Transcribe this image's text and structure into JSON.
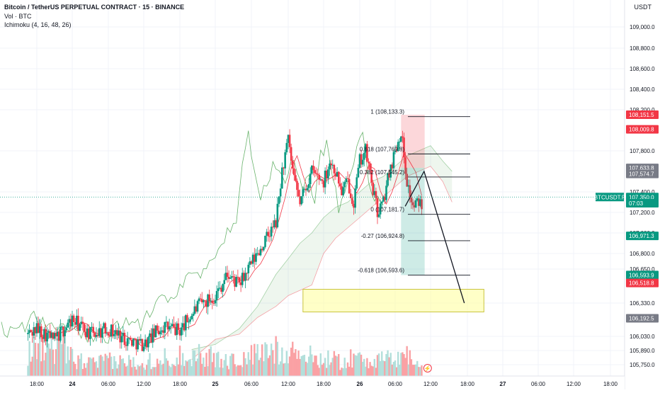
{
  "header": {
    "title": "Bitcoin / TetherUS PERPETUAL CONTRACT · 15 · BINANCE",
    "vol": "Vol · BTC",
    "ichimoku": "Ichimoku (4, 16, 48, 26)",
    "currency": "USDT"
  },
  "colors": {
    "up": "#089981",
    "down": "#f23645",
    "vol_up": "#b2dfdb",
    "vol_down": "#faa1a4",
    "cloud": "#43a047",
    "fib_line": "#131722",
    "target_zone": "#ffff99",
    "axis_text": "#131722"
  },
  "chart_data": {
    "type": "candlestick",
    "symbol": "BTCUSDT.P",
    "y_axis": {
      "ticks": [
        "109,000.0",
        "108,800.0",
        "108,600.0",
        "108,400.0",
        "108,200.0",
        "107,800.0",
        "107,400.0",
        "107,200.0",
        "107,000.0",
        "106,800.0",
        "106,650.0",
        "106,330.0",
        "106,030.0",
        "105,890.0",
        "105,750.0"
      ],
      "tick_values": [
        109000,
        108800,
        108600,
        108400,
        108200,
        107800,
        107400,
        107200,
        107000,
        106800,
        106650,
        106330,
        106030,
        105890,
        105750
      ]
    },
    "x_axis": {
      "ticks": [
        "18:00",
        "24",
        "06:00",
        "12:00",
        "18:00",
        "25",
        "06:00",
        "12:00",
        "18:00",
        "26",
        "06:00",
        "12:00",
        "18:00",
        "27",
        "06:00",
        "12:00",
        "18:00"
      ],
      "tick_hours": [
        -6,
        0,
        6,
        12,
        18,
        24,
        30,
        36,
        42,
        48,
        54,
        60,
        66,
        72,
        78,
        84,
        90
      ]
    },
    "price_labels": [
      {
        "text": "108,151.5",
        "value": 108151.5,
        "kind": "down"
      },
      {
        "text": "108,009.8",
        "value": 108009.8,
        "kind": "down"
      },
      {
        "text": "107,633.8",
        "value": 107633.8,
        "kind": "gray"
      },
      {
        "text": "107,574.7",
        "value": 107574.7,
        "kind": "gray"
      },
      {
        "text": "107,350.0",
        "value": 107350.0,
        "kind": "up"
      },
      {
        "text": "07:03",
        "value": 107290.0,
        "kind": "up"
      },
      {
        "text": "106,971.3",
        "value": 106971.3,
        "kind": "up"
      },
      {
        "text": "106,593.9",
        "value": 106593.9,
        "kind": "up"
      },
      {
        "text": "106,518.8",
        "value": 106518.8,
        "kind": "down"
      },
      {
        "text": "106,192.5",
        "value": 106192.5,
        "kind": "gray"
      }
    ],
    "symbol_label": "BTCUSDT.P",
    "last_price": 107350.0,
    "fib_levels": [
      {
        "label": "1 (108,133.3)",
        "value": 108133.3
      },
      {
        "label": "0.618 (107,769.8)",
        "value": 107769.8
      },
      {
        "label": "0.382 (107,545.2)",
        "value": 107545.2
      },
      {
        "label": "0 (107,181.7)",
        "value": 107181.7
      },
      {
        "label": "-0.27 (106,924.8)",
        "value": 106924.8
      },
      {
        "label": "-0.618 (106,593.6)",
        "value": 106593.6
      }
    ],
    "position": {
      "entry": 107633.8,
      "stop": 108151.5,
      "target": 106593.6,
      "start_hour": 55,
      "end_hour": 59
    },
    "projection": [
      [
        55.7,
        107260
      ],
      [
        58.9,
        107600
      ],
      [
        65.5,
        106330
      ]
    ],
    "target_zone": {
      "low": 106250,
      "high": 106460,
      "start_hour": 38.5,
      "end_hour": 68.8
    },
    "candle_anchors": [
      [
        -7.5,
        106050
      ],
      [
        -6,
        106100
      ],
      [
        -3,
        106000
      ],
      [
        0,
        106180
      ],
      [
        3,
        106050
      ],
      [
        6,
        106100
      ],
      [
        9,
        106000
      ],
      [
        12,
        105950
      ],
      [
        15,
        106120
      ],
      [
        18,
        106080
      ],
      [
        21,
        106300
      ],
      [
        24,
        106400
      ],
      [
        26,
        106600
      ],
      [
        28,
        106500
      ],
      [
        30,
        106700
      ],
      [
        32,
        106900
      ],
      [
        34,
        107100
      ],
      [
        35,
        107600
      ],
      [
        36,
        107900
      ],
      [
        37,
        107500
      ],
      [
        38,
        107300
      ],
      [
        40,
        107600
      ],
      [
        42,
        107500
      ],
      [
        43,
        107700
      ],
      [
        44,
        107600
      ],
      [
        45,
        107400
      ],
      [
        46,
        107500
      ],
      [
        47,
        107300
      ],
      [
        48,
        107700
      ],
      [
        49,
        107800
      ],
      [
        50,
        107500
      ],
      [
        51,
        107200
      ],
      [
        52,
        107300
      ],
      [
        53,
        107600
      ],
      [
        54,
        107800
      ],
      [
        55,
        108000
      ],
      [
        56,
        107500
      ],
      [
        57,
        107250
      ],
      [
        58,
        107300
      ]
    ],
    "volume_anchors": [
      [
        -7.5,
        0.4
      ],
      [
        -6,
        0.8
      ],
      [
        -4,
        0.5
      ],
      [
        -2,
        0.6
      ],
      [
        0,
        0.35
      ],
      [
        3,
        0.25
      ],
      [
        6,
        0.3
      ],
      [
        9,
        0.28
      ],
      [
        12,
        0.3
      ],
      [
        15,
        0.35
      ],
      [
        18,
        0.4
      ],
      [
        21,
        0.45
      ],
      [
        24,
        0.35
      ],
      [
        27,
        0.3
      ],
      [
        30,
        0.4
      ],
      [
        33,
        0.5
      ],
      [
        36,
        0.55
      ],
      [
        39,
        0.4
      ],
      [
        42,
        0.35
      ],
      [
        45,
        0.3
      ],
      [
        48,
        0.38
      ],
      [
        51,
        0.3
      ],
      [
        54,
        0.35
      ],
      [
        56,
        0.45
      ],
      [
        58,
        0.2
      ]
    ],
    "cloud_anchors": [
      [
        20,
        105900,
        105800
      ],
      [
        24,
        105950,
        106000
      ],
      [
        28,
        106100,
        106050
      ],
      [
        31,
        106300,
        106200
      ],
      [
        34,
        106600,
        106300
      ],
      [
        36,
        106750,
        106400
      ],
      [
        38,
        106900,
        106450
      ],
      [
        40,
        107000,
        106500
      ],
      [
        42,
        107150,
        106800
      ],
      [
        44,
        107250,
        106950
      ],
      [
        46,
        107300,
        107050
      ],
      [
        48,
        107400,
        107150
      ],
      [
        50,
        107500,
        107250
      ],
      [
        52,
        107550,
        107350
      ],
      [
        54,
        107650,
        107450
      ],
      [
        56,
        107750,
        107550
      ],
      [
        58,
        107800,
        107600
      ],
      [
        60,
        107850,
        107650
      ],
      [
        62,
        107700,
        107500
      ],
      [
        63.5,
        107600,
        107300
      ]
    ]
  }
}
